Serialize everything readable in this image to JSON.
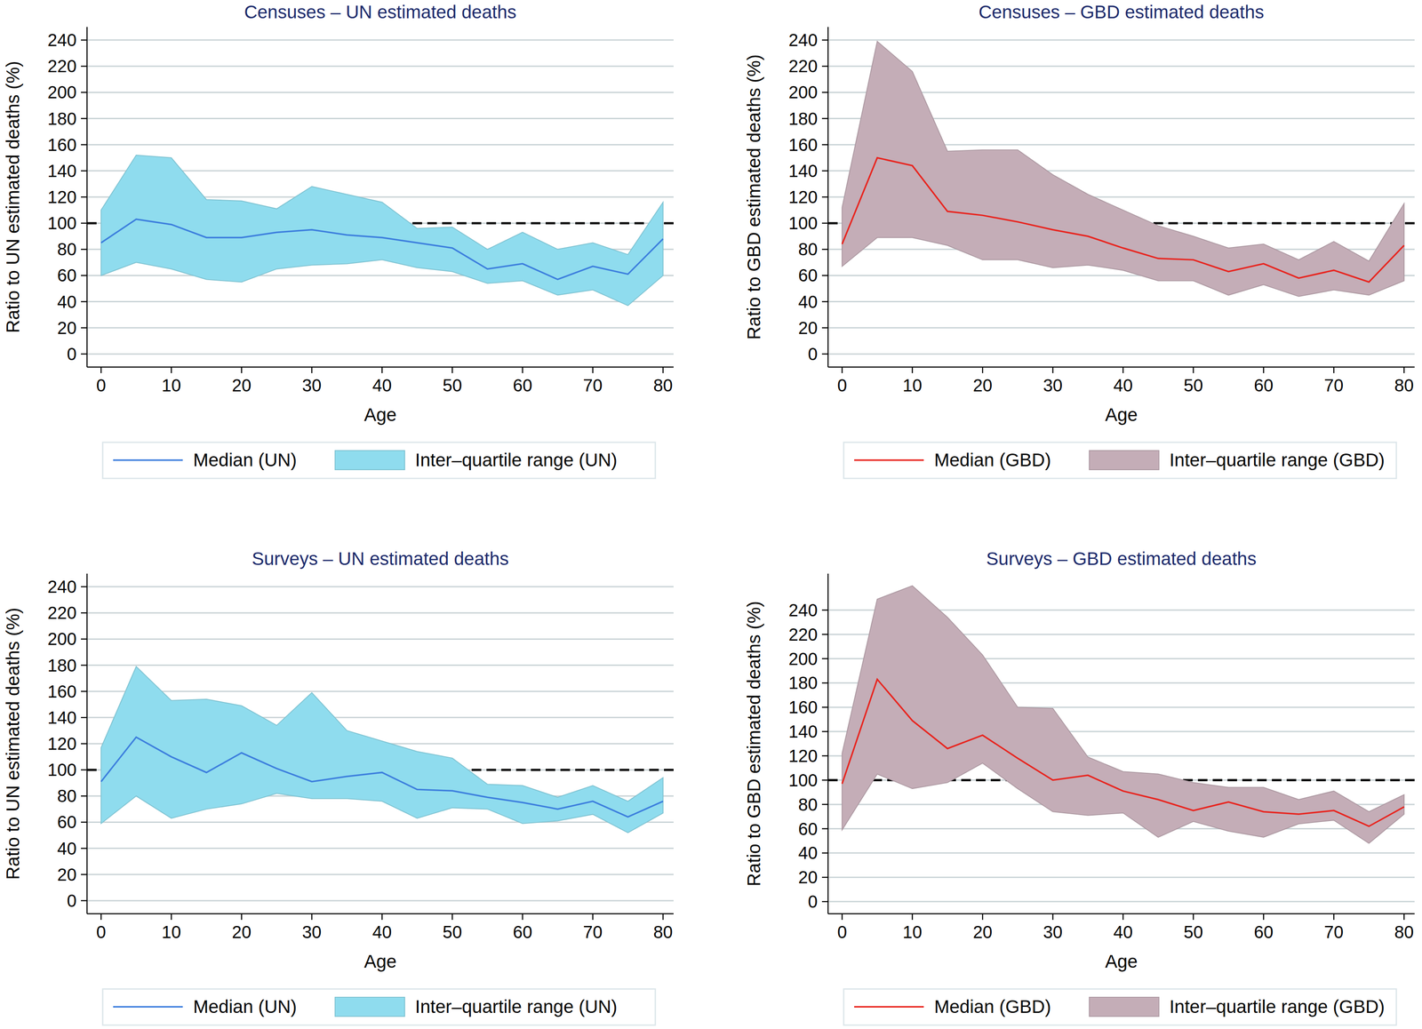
{
  "chart_data": [
    {
      "type": "line",
      "title": "Censuses – UN estimated deaths",
      "x_label": "Age",
      "y_label": "Ratio to UN estimated deaths (%)",
      "x": [
        0,
        5,
        10,
        15,
        20,
        25,
        30,
        35,
        40,
        45,
        50,
        55,
        60,
        65,
        70,
        75,
        80
      ],
      "xlim": [
        -2,
        81.5
      ],
      "xticks": [
        0,
        10,
        20,
        30,
        40,
        50,
        60,
        70,
        80
      ],
      "ylim": [
        -10,
        250
      ],
      "yticks": [
        0,
        20,
        40,
        60,
        80,
        100,
        120,
        140,
        160,
        180,
        200,
        220,
        240
      ],
      "grid": true,
      "reference_line": 100,
      "series": [
        {
          "name": "Median (UN)",
          "type": "line",
          "color": "#3b7ddd",
          "values": [
            85,
            103,
            99,
            89,
            89,
            93,
            95,
            91,
            89,
            85,
            81,
            65,
            69,
            57,
            67,
            61,
            88
          ]
        },
        {
          "name": "Inter–quartile range (UN)",
          "type": "area",
          "color": "#8fdcee",
          "low": [
            60,
            70,
            65,
            57,
            55,
            65,
            68,
            69,
            72,
            66,
            63,
            54,
            56,
            45,
            49,
            37,
            60
          ],
          "high": [
            110,
            152,
            150,
            118,
            117,
            111,
            128,
            122,
            116,
            96,
            97,
            80,
            93,
            80,
            85,
            76,
            116
          ]
        }
      ]
    },
    {
      "type": "line",
      "title": "Censuses – GBD estimated deaths",
      "x_label": "Age",
      "y_label": "Ratio to GBD estimated deaths (%)",
      "x": [
        0,
        5,
        10,
        15,
        20,
        25,
        30,
        35,
        40,
        45,
        50,
        55,
        60,
        65,
        70,
        75,
        80
      ],
      "xlim": [
        -2,
        81.5
      ],
      "xticks": [
        0,
        10,
        20,
        30,
        40,
        50,
        60,
        70,
        80
      ],
      "ylim": [
        -10,
        250
      ],
      "yticks": [
        0,
        20,
        40,
        60,
        80,
        100,
        120,
        140,
        160,
        180,
        200,
        220,
        240
      ],
      "grid": true,
      "reference_line": 100,
      "series": [
        {
          "name": "Median (GBD)",
          "type": "line",
          "color": "#e8231d",
          "values": [
            84,
            150,
            144,
            109,
            106,
            101,
            95,
            90,
            81,
            73,
            72,
            63,
            69,
            58,
            64,
            55,
            83
          ]
        },
        {
          "name": "Inter–quartile range (GBD)",
          "type": "area",
          "color": "#c4adb7",
          "low": [
            67,
            89,
            89,
            83,
            72,
            72,
            66,
            68,
            64,
            56,
            56,
            45,
            53,
            44,
            49,
            45,
            56
          ],
          "high": [
            112,
            239,
            216,
            155,
            156,
            156,
            137,
            122,
            110,
            98,
            90,
            81,
            84,
            72,
            86,
            71,
            115
          ]
        }
      ]
    },
    {
      "type": "line",
      "title": "Surveys – UN estimated deaths",
      "x_label": "Age",
      "y_label": "Ratio to UN estimated deaths (%)",
      "x": [
        0,
        5,
        10,
        15,
        20,
        25,
        30,
        35,
        40,
        45,
        50,
        55,
        60,
        65,
        70,
        75,
        80
      ],
      "xlim": [
        -2,
        81.5
      ],
      "xticks": [
        0,
        10,
        20,
        30,
        40,
        50,
        60,
        70,
        80
      ],
      "ylim": [
        -10,
        250
      ],
      "yticks": [
        0,
        20,
        40,
        60,
        80,
        100,
        120,
        140,
        160,
        180,
        200,
        220,
        240
      ],
      "grid": true,
      "reference_line": 100,
      "series": [
        {
          "name": "Median (UN)",
          "type": "line",
          "color": "#3b7ddd",
          "values": [
            91,
            125,
            110,
            98,
            113,
            101,
            91,
            95,
            98,
            85,
            84,
            79,
            75,
            70,
            76,
            64,
            76
          ]
        },
        {
          "name": "Inter–quartile range (UN)",
          "type": "area",
          "color": "#8fdcee",
          "low": [
            59,
            80,
            63,
            70,
            74,
            82,
            78,
            78,
            76,
            63,
            71,
            70,
            59,
            61,
            66,
            52,
            67
          ],
          "high": [
            117,
            179,
            153,
            154,
            149,
            134,
            159,
            130,
            122,
            114,
            109,
            89,
            88,
            79,
            88,
            76,
            94
          ]
        }
      ]
    },
    {
      "type": "line",
      "title": "Surveys – GBD estimated deaths",
      "x_label": "Age",
      "y_label": "Ratio to GBD estimated deaths (%)",
      "x": [
        0,
        5,
        10,
        15,
        20,
        25,
        30,
        35,
        40,
        45,
        50,
        55,
        60,
        65,
        70,
        75,
        80
      ],
      "xlim": [
        -2,
        81.5
      ],
      "xticks": [
        0,
        10,
        20,
        30,
        40,
        50,
        60,
        70,
        80
      ],
      "ylim": [
        -10,
        270
      ],
      "yticks": [
        0,
        20,
        40,
        60,
        80,
        100,
        120,
        140,
        160,
        180,
        200,
        220,
        240
      ],
      "grid": true,
      "reference_line": 100,
      "series": [
        {
          "name": "Median (GBD)",
          "type": "line",
          "color": "#e8231d",
          "values": [
            97,
            183,
            149,
            126,
            137,
            118,
            100,
            104,
            91,
            84,
            75,
            82,
            74,
            72,
            75,
            62,
            78
          ]
        },
        {
          "name": "Inter–quartile range (GBD)",
          "type": "area",
          "color": "#c4adb7",
          "low": [
            59,
            105,
            93,
            98,
            114,
            93,
            74,
            71,
            73,
            53,
            66,
            58,
            53,
            64,
            67,
            48,
            72
          ],
          "high": [
            122,
            249,
            260,
            234,
            203,
            160,
            159,
            119,
            107,
            105,
            98,
            94,
            94,
            84,
            91,
            74,
            88
          ]
        }
      ]
    }
  ]
}
